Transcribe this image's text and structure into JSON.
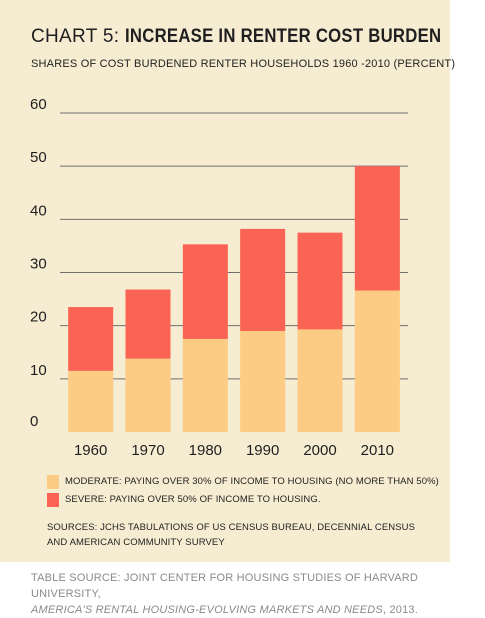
{
  "header": {
    "title_prefix": "CHART 5:",
    "title_main": "INCREASE IN RENTER COST BURDEN",
    "subtitle": "SHARES OF COST BURDENED RENTER HOUSEHOLDS 1960 -2010 (PERCENT)"
  },
  "colors": {
    "background": "#f6ecd2",
    "moderate": "#fccb84",
    "severe": "#fb6455",
    "grid": "#6e6e6e"
  },
  "chart_data": {
    "type": "bar",
    "stacked": true,
    "categories": [
      "1960",
      "1970",
      "1980",
      "1990",
      "2000",
      "2010"
    ],
    "series": [
      {
        "name": "MODERATE: PAYING OVER 30% OF INCOME TO HOUSING (NO MORE THAN 50%)",
        "values": [
          11.5,
          13.8,
          17.5,
          19.0,
          19.3,
          26.6
        ]
      },
      {
        "name": "SEVERE: PAYING OVER 50% OF INCOME TO HOUSING.",
        "values": [
          12.0,
          13.0,
          17.8,
          19.2,
          18.2,
          23.4
        ]
      }
    ],
    "ylim": [
      0,
      60
    ],
    "yticks": [
      "0",
      "10",
      "20",
      "30",
      "40",
      "50",
      "60"
    ],
    "grid": true,
    "legend_position": "bottom"
  },
  "legend": {
    "moderate_label": "MODERATE: PAYING OVER 30% OF INCOME TO HOUSING (NO MORE THAN 50%)",
    "severe_label": "SEVERE: PAYING OVER 50% OF INCOME TO HOUSING."
  },
  "sources": "SOURCES: JCHS TABULATIONS OF US CENSUS BUREAU, DECENNIAL CENSUS AND AMERICAN COMMUNITY SURVEY",
  "footer": {
    "line1": "TABLE SOURCE: JOINT CENTER FOR HOUSING STUDIES OF HARVARD UNIVERSITY,",
    "line2_italic": "AMERICA'S RENTAL HOUSING-EVOLVING MARKETS AND NEEDS",
    "line2_end": ", 2013."
  }
}
